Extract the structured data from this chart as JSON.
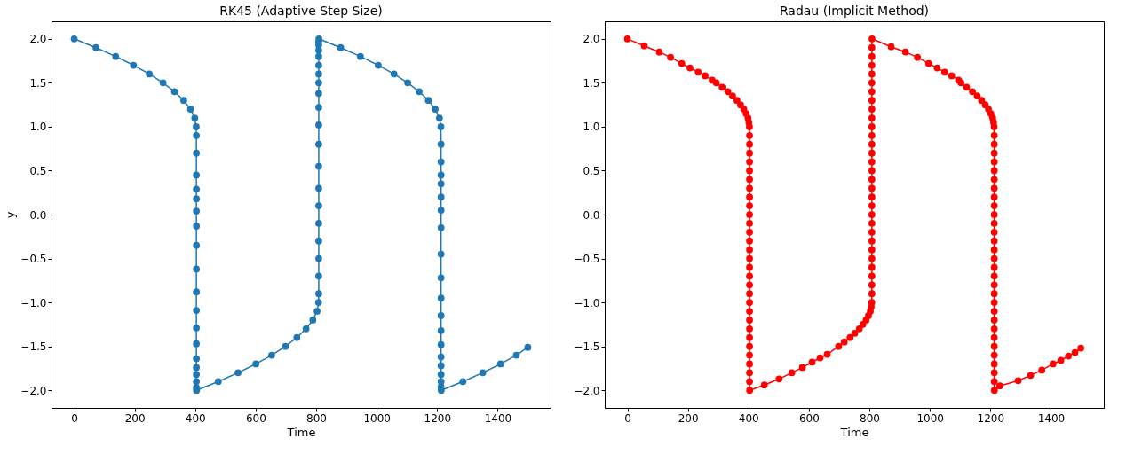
{
  "chart_data": [
    {
      "type": "line",
      "title": "RK45 (Adaptive Step Size)",
      "xlabel": "Time",
      "ylabel": "y",
      "xlim": [
        -75,
        1575
      ],
      "ylim": [
        -2.2,
        2.2
      ],
      "xticks": [
        0,
        200,
        400,
        600,
        800,
        1000,
        1200,
        1400
      ],
      "yticks": [
        {
          "value": -2,
          "label": "−2.0"
        },
        {
          "value": -1.5,
          "label": "−1.5"
        },
        {
          "value": -1,
          "label": "−1.0"
        },
        {
          "value": -0.5,
          "label": "−0.5"
        },
        {
          "value": 0,
          "label": "0.0"
        },
        {
          "value": 0.5,
          "label": "0.5"
        },
        {
          "value": 1,
          "label": "1.0"
        },
        {
          "value": 1.5,
          "label": "1.5"
        },
        {
          "value": 2,
          "label": "2.0"
        }
      ],
      "marker": "circle",
      "line_style": "solid",
      "series": [
        {
          "color": "#1f77b4",
          "x": [
            0,
            71.9,
            137.3,
            196.2,
            248.4,
            293.7,
            331.7,
            362.1,
            384.6,
            398.6,
            403.4,
            404,
            404,
            404,
            404,
            404,
            404,
            404,
            404,
            404,
            404,
            404,
            404,
            404,
            404,
            404,
            404,
            404,
            404,
            404.5,
            476.4,
            541.8,
            600.7,
            652.9,
            698.2,
            736.2,
            766.6,
            789.1,
            803.1,
            807.9,
            808.5,
            808.5,
            808.5,
            808.5,
            808.5,
            808.5,
            808.5,
            808.5,
            808.5,
            808.5,
            808.5,
            808.5,
            808.5,
            808.5,
            808.5,
            808.5,
            808.5,
            808.5,
            808.5,
            809,
            880.9,
            946.3,
            1005.2,
            1057.4,
            1102.7,
            1140.7,
            1171.1,
            1193.6,
            1207.6,
            1212.4,
            1213,
            1213,
            1213,
            1213,
            1213,
            1213,
            1213,
            1213,
            1213,
            1213,
            1213,
            1213,
            1213,
            1213,
            1213,
            1213,
            1213,
            1213,
            1213.5,
            1285.4,
            1350.8,
            1409.7,
            1461.9,
            1500
          ],
          "values": [
            2.0,
            1.9,
            1.8,
            1.7,
            1.6,
            1.5,
            1.4,
            1.3,
            1.2,
            1.1,
            1.0,
            0.9,
            0.7,
            0.45,
            0.29,
            0.18,
            0.04,
            -0.13,
            -0.35,
            -0.62,
            -0.88,
            -1.09,
            -1.29,
            -1.47,
            -1.64,
            -1.74,
            -1.82,
            -1.9,
            -1.97,
            -2.0,
            -1.9,
            -1.8,
            -1.7,
            -1.6,
            -1.5,
            -1.4,
            -1.3,
            -1.2,
            -1.1,
            -1.0,
            -0.9,
            -0.7,
            -0.5,
            -0.3,
            -0.1,
            0.1,
            0.3,
            0.55,
            0.8,
            1.02,
            1.22,
            1.38,
            1.5,
            1.6,
            1.7,
            1.8,
            1.87,
            1.93,
            1.97,
            2.0,
            1.9,
            1.8,
            1.7,
            1.6,
            1.5,
            1.4,
            1.3,
            1.2,
            1.1,
            1.0,
            0.8,
            0.6,
            0.45,
            0.35,
            0.2,
            0.05,
            -0.15,
            -0.45,
            -0.72,
            -0.95,
            -1.15,
            -1.32,
            -1.48,
            -1.62,
            -1.72,
            -1.82,
            -1.9,
            -1.96,
            -2.0,
            -1.9,
            -1.8,
            -1.7,
            -1.6,
            -1.51
          ]
        }
      ]
    },
    {
      "type": "line",
      "title": "Radau (Implicit Method)",
      "xlabel": "Time",
      "xlim": [
        -75,
        1575
      ],
      "ylim": [
        -2.2,
        2.2
      ],
      "xticks": [
        0,
        200,
        400,
        600,
        800,
        1000,
        1200,
        1400
      ],
      "yticks": [
        {
          "value": -2,
          "label": "−2.0"
        },
        {
          "value": -1.5,
          "label": "−1.5"
        },
        {
          "value": -1,
          "label": "−1.0"
        },
        {
          "value": -0.5,
          "label": "−0.5"
        },
        {
          "value": 0,
          "label": "0.0"
        },
        {
          "value": 0.5,
          "label": "0.5"
        },
        {
          "value": 1,
          "label": "1.0"
        },
        {
          "value": 1.5,
          "label": "1.5"
        },
        {
          "value": 2,
          "label": "2.0"
        }
      ],
      "marker": "circle",
      "line_style": "solid",
      "series": [
        {
          "color": "#ff0000",
          "x": [
            0,
            55.6,
            105.4,
            142.6,
            179.7,
            206.9,
            234.2,
            256.7,
            280,
            293.7,
            313,
            331.7,
            347.5,
            362.1,
            374,
            384.6,
            392.5,
            398.6,
            401.5,
            403.4,
            403.8,
            403.8,
            403.8,
            403.8,
            403.8,
            403.8,
            403.8,
            403.8,
            403.8,
            403.8,
            403.8,
            403.8,
            403.8,
            403.8,
            403.8,
            403.8,
            403.8,
            403.8,
            403.8,
            403.8,
            403.8,
            403.8,
            403.8,
            403.8,
            403.8,
            403.8,
            403.8,
            403.8,
            403.8,
            404.2,
            452.7,
            501.4,
            543.4,
            578.5,
            610.6,
            636.9,
            660.4,
            698.2,
            717,
            736.2,
            751.9,
            766.6,
            778.5,
            789.1,
            797,
            803.1,
            806,
            807.9,
            808.3,
            808.3,
            808.3,
            808.3,
            808.3,
            808.3,
            808.3,
            808.3,
            808.3,
            808.3,
            808.3,
            808.3,
            808.3,
            808.3,
            808.3,
            808.3,
            808.3,
            808.3,
            808.3,
            808.3,
            808.3,
            808.3,
            808.3,
            808.3,
            808.3,
            808.3,
            808.3,
            808.3,
            808.3,
            808.7,
            872,
            919,
            959,
            996,
            1024,
            1049,
            1072,
            1095,
            1102.7,
            1121.5,
            1140.7,
            1156.4,
            1171.1,
            1183,
            1193.6,
            1201.5,
            1207.6,
            1210.5,
            1212.4,
            1212.8,
            1212.8,
            1212.8,
            1212.8,
            1212.8,
            1212.8,
            1212.8,
            1212.8,
            1212.8,
            1212.8,
            1212.8,
            1212.8,
            1212.8,
            1212.8,
            1212.8,
            1212.8,
            1212.8,
            1212.8,
            1212.8,
            1212.8,
            1212.8,
            1212.8,
            1212.8,
            1212.8,
            1212.8,
            1212.8,
            1212.8,
            1212.8,
            1212.8,
            1213.2,
            1231,
            1292,
            1333,
            1370,
            1407,
            1433,
            1458,
            1480,
            1499
          ],
          "values": [
            2.0,
            1.92,
            1.85,
            1.79,
            1.72,
            1.67,
            1.62,
            1.58,
            1.53,
            1.5,
            1.45,
            1.4,
            1.35,
            1.3,
            1.25,
            1.2,
            1.15,
            1.1,
            1.05,
            1.0,
            0.9,
            0.8,
            0.7,
            0.6,
            0.5,
            0.4,
            0.3,
            0.2,
            0.1,
            0.0,
            -0.1,
            -0.2,
            -0.3,
            -0.4,
            -0.5,
            -0.6,
            -0.7,
            -0.8,
            -0.9,
            -1.0,
            -1.1,
            -1.2,
            -1.3,
            -1.4,
            -1.5,
            -1.6,
            -1.7,
            -1.8,
            -1.9,
            -2.0,
            -1.94,
            -1.87,
            -1.8,
            -1.74,
            -1.68,
            -1.63,
            -1.59,
            -1.5,
            -1.45,
            -1.4,
            -1.35,
            -1.3,
            -1.25,
            -1.2,
            -1.15,
            -1.1,
            -1.05,
            -1.0,
            -0.9,
            -0.8,
            -0.7,
            -0.6,
            -0.5,
            -0.4,
            -0.3,
            -0.2,
            -0.1,
            0.0,
            0.1,
            0.2,
            0.3,
            0.4,
            0.5,
            0.6,
            0.7,
            0.8,
            0.9,
            1.0,
            1.1,
            1.2,
            1.3,
            1.4,
            1.5,
            1.6,
            1.7,
            1.8,
            1.9,
            2.0,
            1.91,
            1.85,
            1.79,
            1.72,
            1.67,
            1.62,
            1.58,
            1.53,
            1.5,
            1.45,
            1.4,
            1.35,
            1.3,
            1.25,
            1.2,
            1.15,
            1.1,
            1.05,
            1.0,
            0.9,
            0.8,
            0.7,
            0.6,
            0.5,
            0.4,
            0.3,
            0.2,
            0.1,
            0.0,
            -0.1,
            -0.2,
            -0.3,
            -0.4,
            -0.5,
            -0.6,
            -0.7,
            -0.8,
            -0.9,
            -1.0,
            -1.1,
            -1.2,
            -1.3,
            -1.4,
            -1.5,
            -1.6,
            -1.7,
            -1.8,
            -1.9,
            -2.0,
            -1.95,
            -1.89,
            -1.83,
            -1.77,
            -1.7,
            -1.66,
            -1.61,
            -1.57,
            -1.52
          ]
        }
      ]
    }
  ]
}
